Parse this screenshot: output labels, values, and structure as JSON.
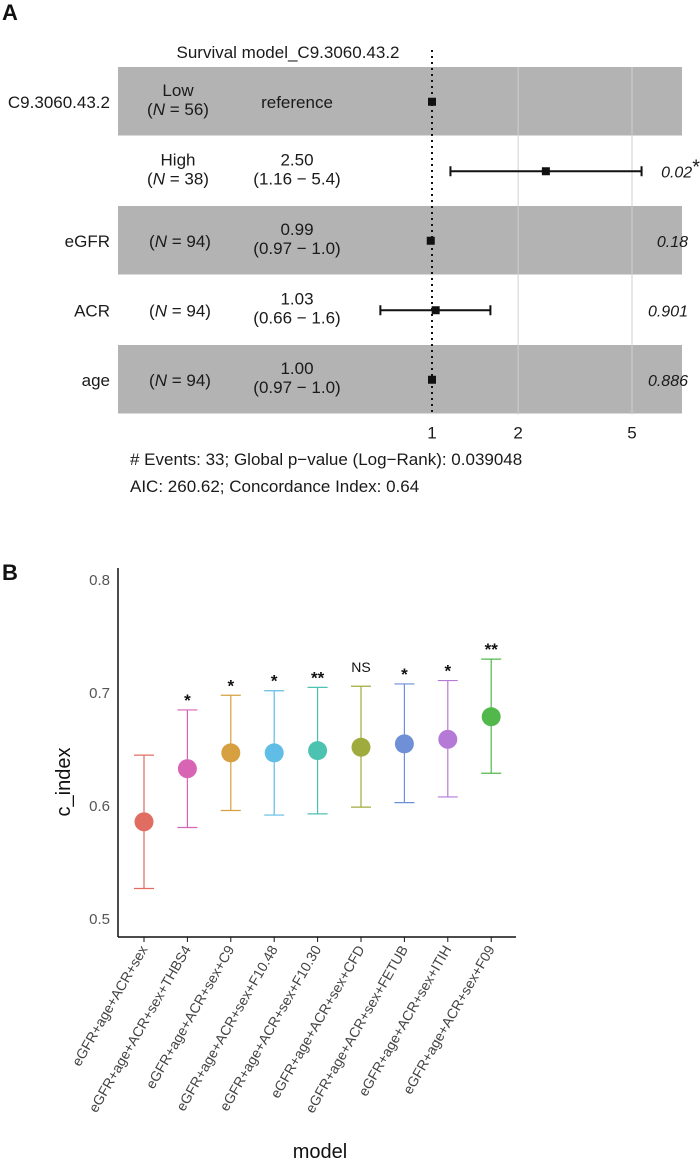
{
  "panelA": {
    "letter": "A",
    "chart_data": {
      "type": "forest",
      "title": "Survival model_C9.3060.43.2",
      "x_scale": "log",
      "x_ticks": [
        1,
        2,
        5
      ],
      "reference_line": 1,
      "rows": [
        {
          "variable": "C9.3060.43.2",
          "level": "Low",
          "n": 56,
          "hr_text": "reference",
          "ci_text": "",
          "hr": 1.0,
          "lo": 1.0,
          "hi": 1.0,
          "p_text": "",
          "shaded": true
        },
        {
          "variable": "",
          "level": "High",
          "n": 38,
          "hr_text": "2.50",
          "ci_text": "(1.16 − 5.4)",
          "hr": 2.5,
          "lo": 1.16,
          "hi": 5.4,
          "p_text": "0.02",
          "star": "*",
          "shaded": false
        },
        {
          "variable": "eGFR",
          "level": "",
          "n": 94,
          "hr_text": "0.99",
          "ci_text": "(0.97 − 1.0)",
          "hr": 0.99,
          "lo": 0.97,
          "hi": 1.0,
          "p_text": "0.18",
          "shaded": true
        },
        {
          "variable": "ACR",
          "level": "",
          "n": 94,
          "hr_text": "1.03",
          "ci_text": "(0.66 − 1.6)",
          "hr": 1.03,
          "lo": 0.66,
          "hi": 1.6,
          "p_text": "0.901",
          "shaded": false
        },
        {
          "variable": "age",
          "level": "",
          "n": 94,
          "hr_text": "1.00",
          "ci_text": "(0.97 − 1.0)",
          "hr": 1.0,
          "lo": 0.97,
          "hi": 1.0,
          "p_text": "0.886",
          "shaded": true
        }
      ],
      "footer": [
        "# Events: 33; Global p−value (Log−Rank): 0.039048",
        "AIC: 260.62; Concordance Index: 0.64"
      ]
    }
  },
  "panelB": {
    "letter": "B",
    "chart_data": {
      "type": "scatter",
      "xlabel": "model",
      "ylabel": "c_index",
      "ylim": [
        0.5,
        0.8
      ],
      "yticks": [
        0.5,
        0.6,
        0.7,
        0.8
      ],
      "points": [
        {
          "model": "eGFR+age+ACR+sex",
          "value": 0.586,
          "lo": 0.527,
          "hi": 0.645,
          "sig": "",
          "color": "#e06c62"
        },
        {
          "model": "eGFR+age+ACR+sex+THBS4",
          "value": 0.633,
          "lo": 0.581,
          "hi": 0.685,
          "sig": "*",
          "color": "#d864b4"
        },
        {
          "model": "eGFR+age+ACR+sex+C9",
          "value": 0.647,
          "lo": 0.596,
          "hi": 0.698,
          "sig": "*",
          "color": "#d6a040"
        },
        {
          "model": "eGFR+age+ACR+sex+F10.48",
          "value": 0.647,
          "lo": 0.592,
          "hi": 0.702,
          "sig": "*",
          "color": "#5fbde6"
        },
        {
          "model": "eGFR+age+ACR+sex+F10.30",
          "value": 0.649,
          "lo": 0.593,
          "hi": 0.705,
          "sig": "**",
          "color": "#4cc2b0"
        },
        {
          "model": "eGFR+age+ACR+sex+CFD",
          "value": 0.652,
          "lo": 0.599,
          "hi": 0.706,
          "sig": "NS",
          "color": "#a0ab3e"
        },
        {
          "model": "eGFR+age+ACR+sex+FETUB",
          "value": 0.655,
          "lo": 0.603,
          "hi": 0.708,
          "sig": "*",
          "color": "#6f8fd6"
        },
        {
          "model": "eGFR+age+ACR+sex+ITIH",
          "value": 0.659,
          "lo": 0.608,
          "hi": 0.711,
          "sig": "*",
          "color": "#b57ad6"
        },
        {
          "model": "eGFR+age+ACR+sex+F09",
          "value": 0.679,
          "lo": 0.629,
          "hi": 0.73,
          "sig": "**",
          "color": "#52b84c"
        }
      ]
    }
  }
}
